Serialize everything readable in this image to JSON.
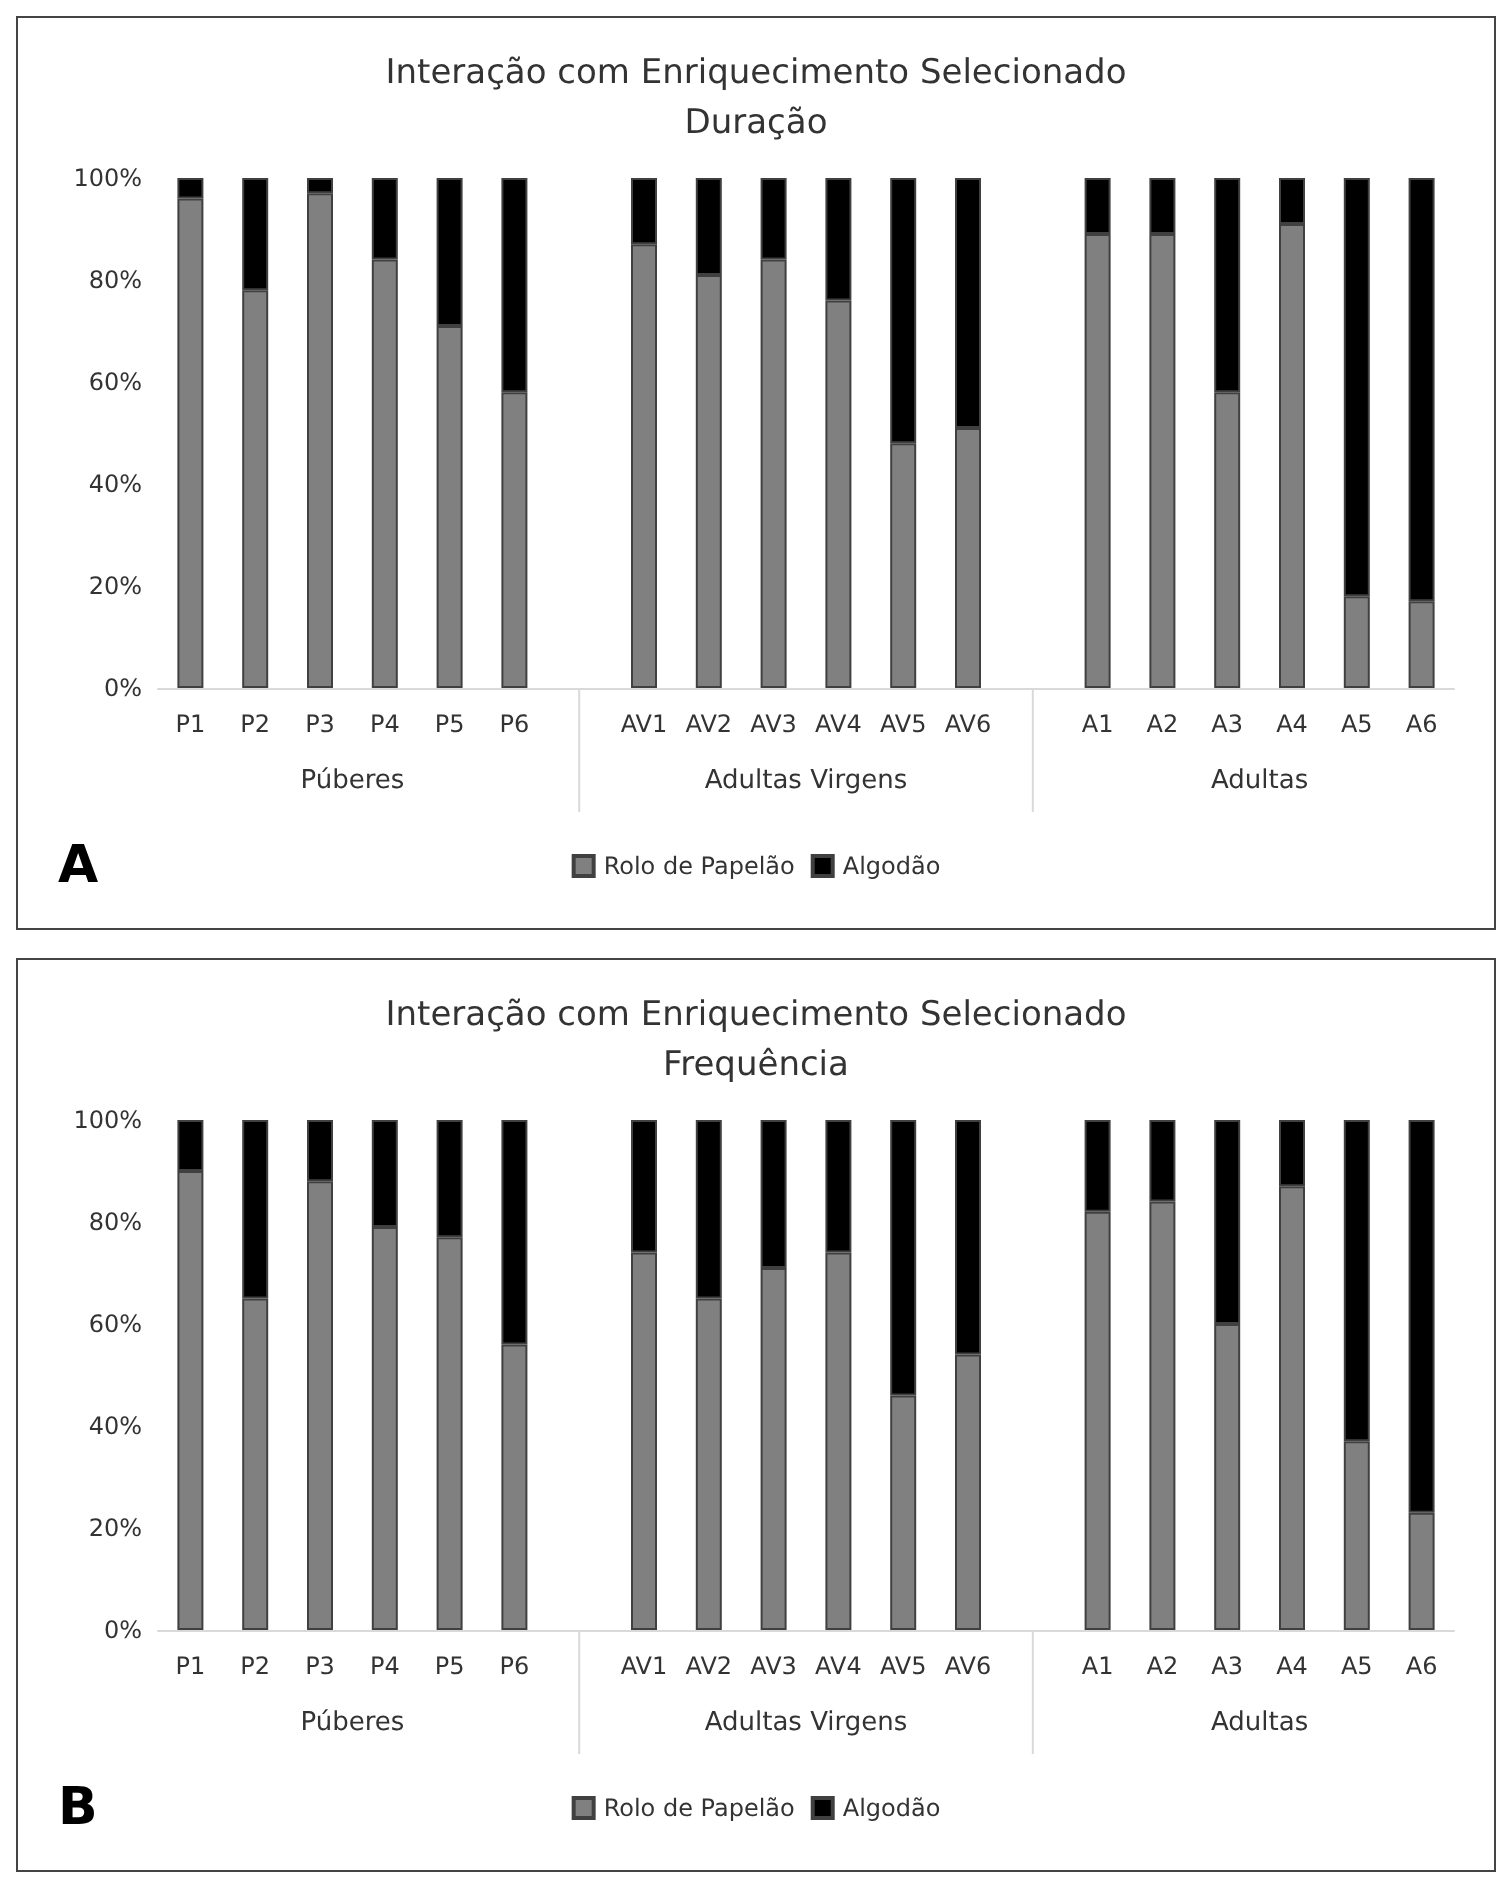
{
  "chart_data": [
    {
      "type": "bar",
      "title": "Interação com Enriquecimento Selecionado",
      "subtitle": "Duração",
      "categories": [
        "P1",
        "P2",
        "P3",
        "P4",
        "P5",
        "P6",
        null,
        "AV1",
        "AV2",
        "AV3",
        "AV4",
        "AV5",
        "AV6",
        null,
        "A1",
        "A2",
        "A3",
        "A4",
        "A5",
        "A6"
      ],
      "stacked": true,
      "series": [
        {
          "name": "Rolo de Papelão",
          "color": "#808080",
          "values": [
            96,
            78,
            97,
            84,
            71,
            58,
            null,
            87,
            81,
            84,
            76,
            48,
            51,
            null,
            89,
            89,
            58,
            91,
            18,
            17
          ]
        },
        {
          "name": "Algodão",
          "color": "#000000",
          "values": [
            4,
            22,
            3,
            16,
            29,
            42,
            null,
            13,
            19,
            16,
            24,
            52,
            49,
            null,
            11,
            11,
            42,
            9,
            82,
            83
          ]
        }
      ],
      "ylim": [
        0,
        100
      ],
      "yticks": [
        {
          "value": 0,
          "label": "0%"
        },
        {
          "value": 20,
          "label": "20%"
        },
        {
          "value": 40,
          "label": "40%"
        },
        {
          "value": 60,
          "label": "60%"
        },
        {
          "value": 80,
          "label": "80%"
        },
        {
          "value": 100,
          "label": "100%"
        }
      ],
      "grid": false,
      "legend": "bottom",
      "annotations": [
        "Púberes",
        "Adultas Virgens",
        "Adultas",
        "A"
      ]
    },
    {
      "type": "bar",
      "title": "Interação com Enriquecimento Selecionado",
      "subtitle": "Frequência",
      "categories": [
        "P1",
        "P2",
        "P3",
        "P4",
        "P5",
        "P6",
        null,
        "AV1",
        "AV2",
        "AV3",
        "AV4",
        "AV5",
        "AV6",
        null,
        "A1",
        "A2",
        "A3",
        "A4",
        "A5",
        "A6"
      ],
      "stacked": true,
      "series": [
        {
          "name": "Rolo de Papelão",
          "color": "#808080",
          "values": [
            90,
            65,
            88,
            79,
            77,
            56,
            null,
            74,
            65,
            71,
            74,
            46,
            54,
            null,
            82,
            84,
            60,
            87,
            37,
            23
          ]
        },
        {
          "name": "Algodão",
          "color": "#000000",
          "values": [
            10,
            35,
            12,
            21,
            23,
            44,
            null,
            26,
            35,
            29,
            26,
            54,
            46,
            null,
            18,
            16,
            40,
            13,
            63,
            77
          ]
        }
      ],
      "ylim": [
        0,
        100
      ],
      "yticks": [
        {
          "value": 0,
          "label": "0%"
        },
        {
          "value": 20,
          "label": "20%"
        },
        {
          "value": 40,
          "label": "40%"
        },
        {
          "value": 60,
          "label": "60%"
        },
        {
          "value": 80,
          "label": "80%"
        },
        {
          "value": 100,
          "label": "100%"
        }
      ],
      "grid": false,
      "legend": "bottom",
      "annotations": [
        "Púberes",
        "Adultas Virgens",
        "Adultas",
        "B"
      ]
    }
  ]
}
